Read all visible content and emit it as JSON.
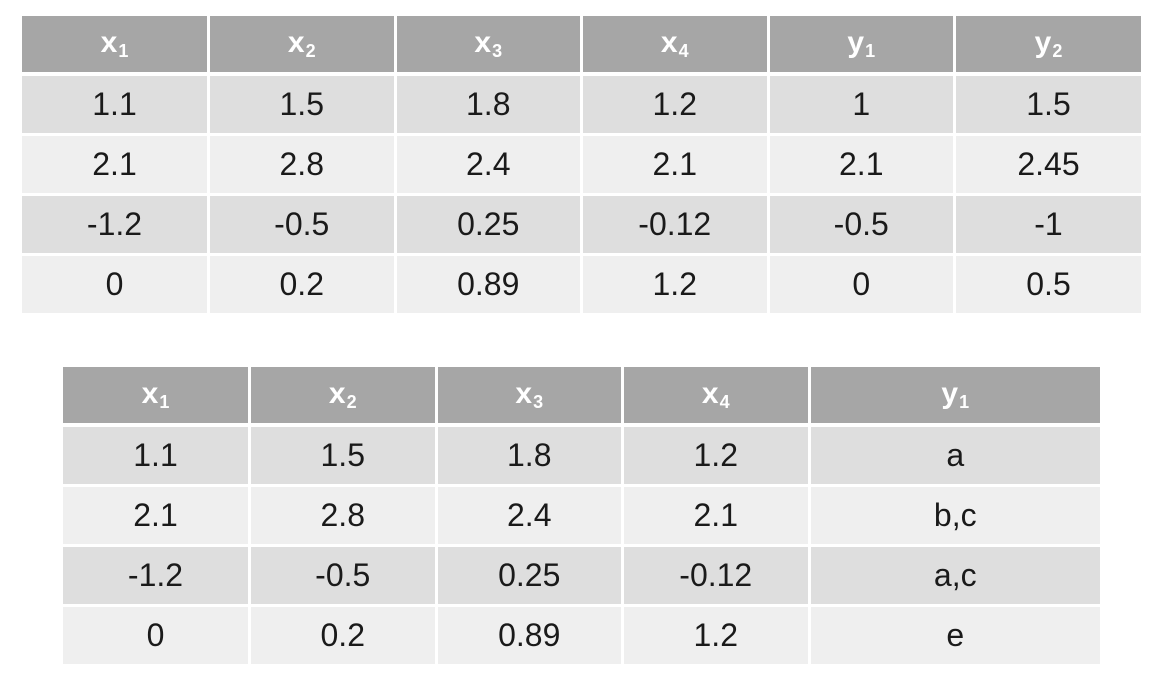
{
  "table1": {
    "headers": [
      {
        "base": "x",
        "sub": "1"
      },
      {
        "base": "x",
        "sub": "2"
      },
      {
        "base": "x",
        "sub": "3"
      },
      {
        "base": "x",
        "sub": "4"
      },
      {
        "base": "y",
        "sub": "1"
      },
      {
        "base": "y",
        "sub": "2"
      }
    ],
    "rows": [
      [
        "1.1",
        "1.5",
        "1.8",
        "1.2",
        "1",
        "1.5"
      ],
      [
        "2.1",
        "2.8",
        "2.4",
        "2.1",
        "2.1",
        "2.45"
      ],
      [
        "-1.2",
        "-0.5",
        "0.25",
        "-0.12",
        "-0.5",
        "-1"
      ],
      [
        "0",
        "0.2",
        "0.89",
        "1.2",
        "0",
        "0.5"
      ]
    ]
  },
  "table2": {
    "headers": [
      {
        "base": "x",
        "sub": "1"
      },
      {
        "base": "x",
        "sub": "2"
      },
      {
        "base": "x",
        "sub": "3"
      },
      {
        "base": "x",
        "sub": "4"
      },
      {
        "base": "y",
        "sub": "1"
      }
    ],
    "rows": [
      [
        "1.1",
        "1.5",
        "1.8",
        "1.2",
        "a"
      ],
      [
        "2.1",
        "2.8",
        "2.4",
        "2.1",
        "b,c"
      ],
      [
        "-1.2",
        "-0.5",
        "0.25",
        "-0.12",
        "a,c"
      ],
      [
        "0",
        "0.2",
        "0.89",
        "1.2",
        "e"
      ]
    ]
  },
  "colors": {
    "header_bg": "#a6a6a6",
    "header_text": "#ffffff",
    "row_odd_bg": "#dedede",
    "row_even_bg": "#efefef",
    "cell_text": "#1a1a1a"
  }
}
